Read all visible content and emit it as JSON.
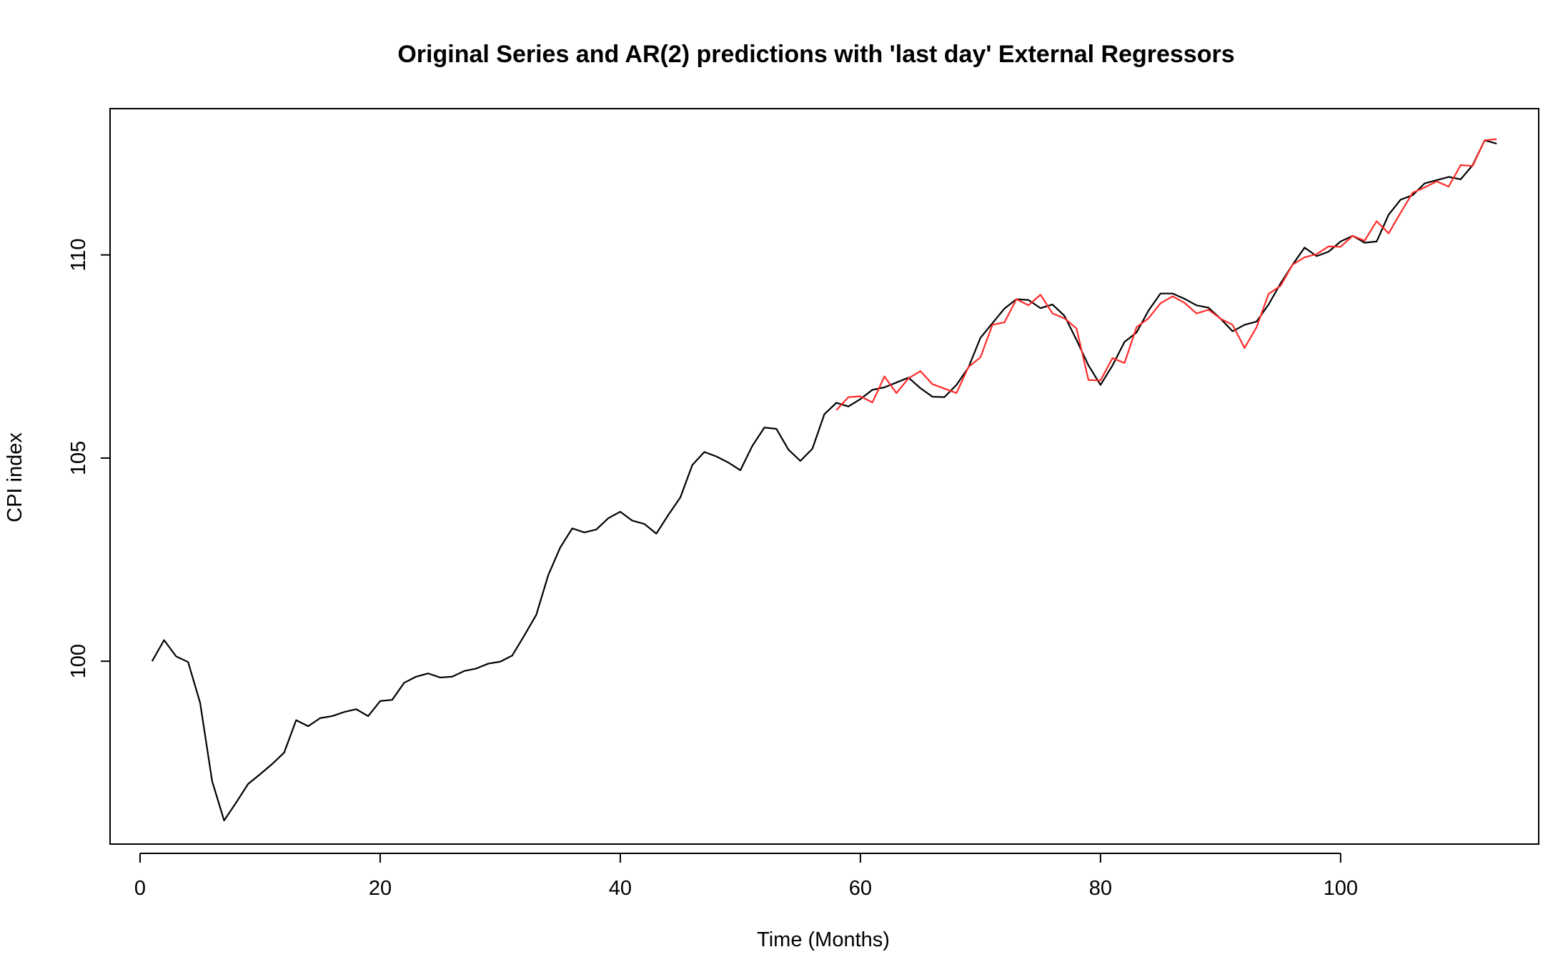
{
  "chart_data": {
    "type": "line",
    "title": "Original Series and AR(2) predictions with 'last day' External Regressors",
    "xlabel": "Time (Months)",
    "ylabel": "CPI index",
    "xlim": [
      -2.5,
      116.5
    ],
    "ylim": [
      95.5,
      113.6
    ],
    "x_ticks": [
      0,
      20,
      40,
      60,
      80,
      100
    ],
    "y_ticks": [
      100,
      105,
      110
    ],
    "x_tick_labels": [
      "0",
      "20",
      "40",
      "60",
      "80",
      "100"
    ],
    "y_tick_labels": [
      "100",
      "105",
      "110"
    ],
    "grid": false,
    "legend": "none",
    "series": [
      {
        "color": "#000000",
        "x_start": 1,
        "values": [
          100.0,
          100.52,
          100.12,
          99.98,
          98.98,
          97.05,
          96.08,
          96.52,
          96.98,
          97.22,
          97.47,
          97.75,
          98.55,
          98.4,
          98.6,
          98.65,
          98.75,
          98.82,
          98.65,
          99.02,
          99.05,
          99.47,
          99.62,
          99.7,
          99.6,
          99.62,
          99.76,
          99.82,
          99.94,
          99.99,
          100.14,
          100.63,
          101.14,
          102.12,
          102.8,
          103.27,
          103.17,
          103.24,
          103.52,
          103.68,
          103.46,
          103.38,
          103.14,
          103.6,
          104.03,
          104.83,
          105.15,
          105.04,
          104.89,
          104.7,
          105.3,
          105.75,
          105.72,
          105.21,
          104.93,
          105.23,
          106.08,
          106.36,
          106.27,
          106.45,
          106.68,
          106.74,
          106.86,
          106.98,
          106.72,
          106.51,
          106.5,
          106.8,
          107.23,
          107.96,
          108.32,
          108.68,
          108.91,
          108.89,
          108.69,
          108.78,
          108.5,
          107.91,
          107.28,
          106.8,
          107.28,
          107.86,
          108.09,
          108.63,
          109.05,
          109.05,
          108.92,
          108.76,
          108.7,
          108.43,
          108.12,
          108.28,
          108.36,
          108.78,
          109.3,
          109.76,
          110.18,
          109.97,
          110.08,
          110.33,
          110.47,
          110.3,
          110.33,
          110.99,
          111.36,
          111.47,
          111.76,
          111.84,
          111.92,
          111.86,
          112.21,
          112.82,
          112.74
        ]
      },
      {
        "color": "#ff2a2a",
        "x_start": 58,
        "values": [
          106.18,
          106.5,
          106.52,
          106.37,
          107.01,
          106.6,
          106.96,
          107.14,
          106.82,
          106.71,
          106.6,
          107.24,
          107.48,
          108.28,
          108.34,
          108.91,
          108.76,
          109.02,
          108.56,
          108.44,
          108.19,
          106.92,
          106.91,
          107.46,
          107.34,
          108.22,
          108.44,
          108.81,
          108.98,
          108.82,
          108.56,
          108.65,
          108.43,
          108.28,
          107.71,
          108.22,
          109.04,
          109.24,
          109.76,
          109.94,
          110.02,
          110.21,
          110.2,
          110.47,
          110.35,
          110.83,
          110.53,
          111.04,
          111.53,
          111.66,
          111.81,
          111.68,
          112.21,
          112.19,
          112.82,
          112.85
        ]
      }
    ]
  }
}
